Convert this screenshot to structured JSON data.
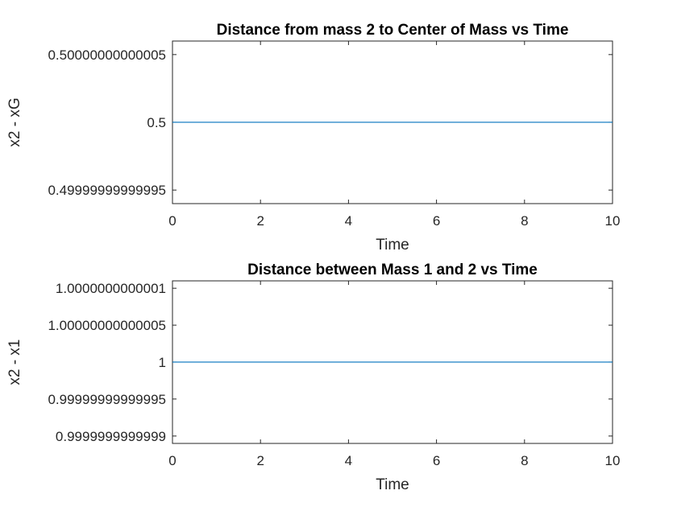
{
  "figure": {
    "background": "#ffffff",
    "axis_color": "#262626",
    "line_color": "#0072bd"
  },
  "chart_data": [
    {
      "type": "line",
      "title": "Distance from mass 2 to Center of Mass vs Time",
      "xlabel": "Time",
      "ylabel": "x2 - xG",
      "xlim": [
        0,
        10
      ],
      "ylim": [
        0.49999999999994,
        0.50000000000006
      ],
      "grid": false,
      "x_ticks": [
        0,
        2,
        4,
        6,
        8,
        10
      ],
      "x_tick_labels": [
        "0",
        "2",
        "4",
        "6",
        "8",
        "10"
      ],
      "y_ticks": [
        0.49999999999995,
        0.5,
        0.50000000000005
      ],
      "y_tick_labels": [
        "0.49999999999995",
        "0.5",
        "0.50000000000005"
      ],
      "series": [
        {
          "x": [
            0,
            1,
            2,
            3,
            4,
            5,
            5.5,
            6,
            6.5,
            7,
            7.5,
            8,
            8.5,
            8.8,
            9,
            9.5,
            10
          ],
          "y": [
            0.5,
            0.5,
            0.5,
            0.5,
            0.5,
            0.5,
            0.5,
            0.5,
            0.5,
            0.5,
            0.5,
            0.5,
            0.5,
            0.5,
            0.5,
            0.5,
            0.5
          ]
        }
      ]
    },
    {
      "type": "line",
      "title": "Distance between Mass 1 and 2 vs Time",
      "xlabel": "Time",
      "ylabel": "x2 - x1",
      "xlim": [
        0,
        10
      ],
      "ylim": [
        0.99999999999989,
        1.00000000000011
      ],
      "grid": false,
      "x_ticks": [
        0,
        2,
        4,
        6,
        8,
        10
      ],
      "x_tick_labels": [
        "0",
        "2",
        "4",
        "6",
        "8",
        "10"
      ],
      "y_ticks": [
        0.9999999999999,
        0.99999999999995,
        1,
        1.00000000000005,
        1.0000000000001
      ],
      "y_tick_labels": [
        "0.9999999999999",
        "0.99999999999995",
        "1",
        "1.00000000000005",
        "1.0000000000001"
      ],
      "series": [
        {
          "x": [
            0,
            1,
            2,
            3,
            4,
            5,
            5.5,
            6,
            6.5,
            7,
            7.5,
            8,
            8.5,
            9,
            9.5,
            10
          ],
          "y": [
            1,
            1,
            1,
            1,
            1,
            1,
            1,
            1,
            1,
            1,
            1,
            1,
            1,
            1,
            1,
            1
          ]
        }
      ]
    }
  ]
}
